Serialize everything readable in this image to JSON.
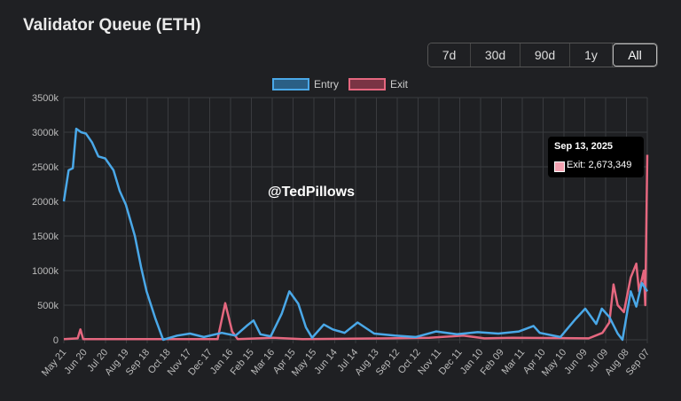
{
  "header": {
    "title": "Validator Queue (ETH)"
  },
  "ranges": [
    {
      "label": "7d"
    },
    {
      "label": "30d"
    },
    {
      "label": "90d"
    },
    {
      "label": "1y"
    },
    {
      "label": "All",
      "active": true
    }
  ],
  "watermark": "@TedPillows",
  "tooltip": {
    "date": "Sep 13, 2025",
    "label": "Exit: 2,673,349"
  },
  "chart_data": {
    "type": "line",
    "title": "",
    "legend_position": "top-center",
    "grid": true,
    "ylim": [
      0,
      3500
    ],
    "yticks": [
      "0",
      "500k",
      "1000k",
      "1500k",
      "2000k",
      "2500k",
      "3000k",
      "3500k"
    ],
    "xticks": [
      "May 21",
      "Jun 20",
      "Jul 20",
      "Aug 19",
      "Sep 18",
      "Oct 18",
      "Nov 17",
      "Dec 17",
      "Jan 16",
      "Feb 15",
      "Mar 16",
      "Apr 15",
      "May 15",
      "Jun 14",
      "Jul 14",
      "Aug 13",
      "Sep 12",
      "Oct 12",
      "Nov 11",
      "Dec 11",
      "Jan 10",
      "Feb 09",
      "Mar 11",
      "Apr 10",
      "May 10",
      "Jun 09",
      "Jul 09",
      "Aug 08",
      "Sep 07"
    ],
    "xrange": [
      "2023-05-21",
      "2025-09-13"
    ],
    "series": [
      {
        "name": "Entry",
        "color": "#4aa8e8",
        "points": [
          [
            "2023-05-21",
            2000
          ],
          [
            "2023-05-28",
            2450
          ],
          [
            "2023-06-03",
            2480
          ],
          [
            "2023-06-08",
            3050
          ],
          [
            "2023-06-15",
            3000
          ],
          [
            "2023-06-22",
            2980
          ],
          [
            "2023-07-01",
            2850
          ],
          [
            "2023-07-10",
            2650
          ],
          [
            "2023-07-20",
            2620
          ],
          [
            "2023-08-01",
            2450
          ],
          [
            "2023-08-10",
            2150
          ],
          [
            "2023-08-19",
            1950
          ],
          [
            "2023-09-01",
            1500
          ],
          [
            "2023-09-10",
            1050
          ],
          [
            "2023-09-18",
            700
          ],
          [
            "2023-10-01",
            300
          ],
          [
            "2023-10-12",
            0
          ],
          [
            "2023-11-01",
            60
          ],
          [
            "2023-11-20",
            90
          ],
          [
            "2023-12-10",
            40
          ],
          [
            "2024-01-05",
            100
          ],
          [
            "2024-01-25",
            60
          ],
          [
            "2024-02-10",
            200
          ],
          [
            "2024-02-20",
            280
          ],
          [
            "2024-03-01",
            80
          ],
          [
            "2024-03-16",
            50
          ],
          [
            "2024-04-01",
            380
          ],
          [
            "2024-04-12",
            700
          ],
          [
            "2024-04-25",
            520
          ],
          [
            "2024-05-06",
            180
          ],
          [
            "2024-05-15",
            30
          ],
          [
            "2024-06-01",
            220
          ],
          [
            "2024-06-14",
            150
          ],
          [
            "2024-07-01",
            100
          ],
          [
            "2024-07-20",
            250
          ],
          [
            "2024-08-13",
            90
          ],
          [
            "2024-09-12",
            60
          ],
          [
            "2024-10-12",
            40
          ],
          [
            "2024-11-11",
            120
          ],
          [
            "2024-12-11",
            80
          ],
          [
            "2025-01-10",
            110
          ],
          [
            "2025-02-09",
            90
          ],
          [
            "2025-03-11",
            120
          ],
          [
            "2025-04-01",
            200
          ],
          [
            "2025-04-10",
            100
          ],
          [
            "2025-05-10",
            40
          ],
          [
            "2025-06-01",
            300
          ],
          [
            "2025-06-15",
            450
          ],
          [
            "2025-07-01",
            230
          ],
          [
            "2025-07-09",
            450
          ],
          [
            "2025-07-20",
            330
          ],
          [
            "2025-08-01",
            90
          ],
          [
            "2025-08-08",
            0
          ],
          [
            "2025-08-20",
            700
          ],
          [
            "2025-08-28",
            480
          ],
          [
            "2025-09-05",
            820
          ],
          [
            "2025-09-13",
            700
          ]
        ]
      },
      {
        "name": "Exit",
        "color": "#e5677f",
        "points": [
          [
            "2023-05-21",
            10
          ],
          [
            "2023-06-10",
            20
          ],
          [
            "2023-06-14",
            150
          ],
          [
            "2023-06-18",
            10
          ],
          [
            "2023-12-30",
            10
          ],
          [
            "2024-01-10",
            530
          ],
          [
            "2024-01-20",
            120
          ],
          [
            "2024-01-28",
            10
          ],
          [
            "2024-03-20",
            30
          ],
          [
            "2024-05-01",
            10
          ],
          [
            "2024-09-01",
            20
          ],
          [
            "2024-11-01",
            30
          ],
          [
            "2024-12-20",
            60
          ],
          [
            "2025-01-20",
            20
          ],
          [
            "2025-03-01",
            30
          ],
          [
            "2025-06-20",
            20
          ],
          [
            "2025-07-10",
            100
          ],
          [
            "2025-07-20",
            250
          ],
          [
            "2025-07-26",
            800
          ],
          [
            "2025-08-01",
            500
          ],
          [
            "2025-08-10",
            400
          ],
          [
            "2025-08-20",
            900
          ],
          [
            "2025-08-28",
            1100
          ],
          [
            "2025-09-01",
            700
          ],
          [
            "2025-09-08",
            1000
          ],
          [
            "2025-09-10",
            500
          ],
          [
            "2025-09-13",
            2673
          ]
        ]
      }
    ]
  }
}
